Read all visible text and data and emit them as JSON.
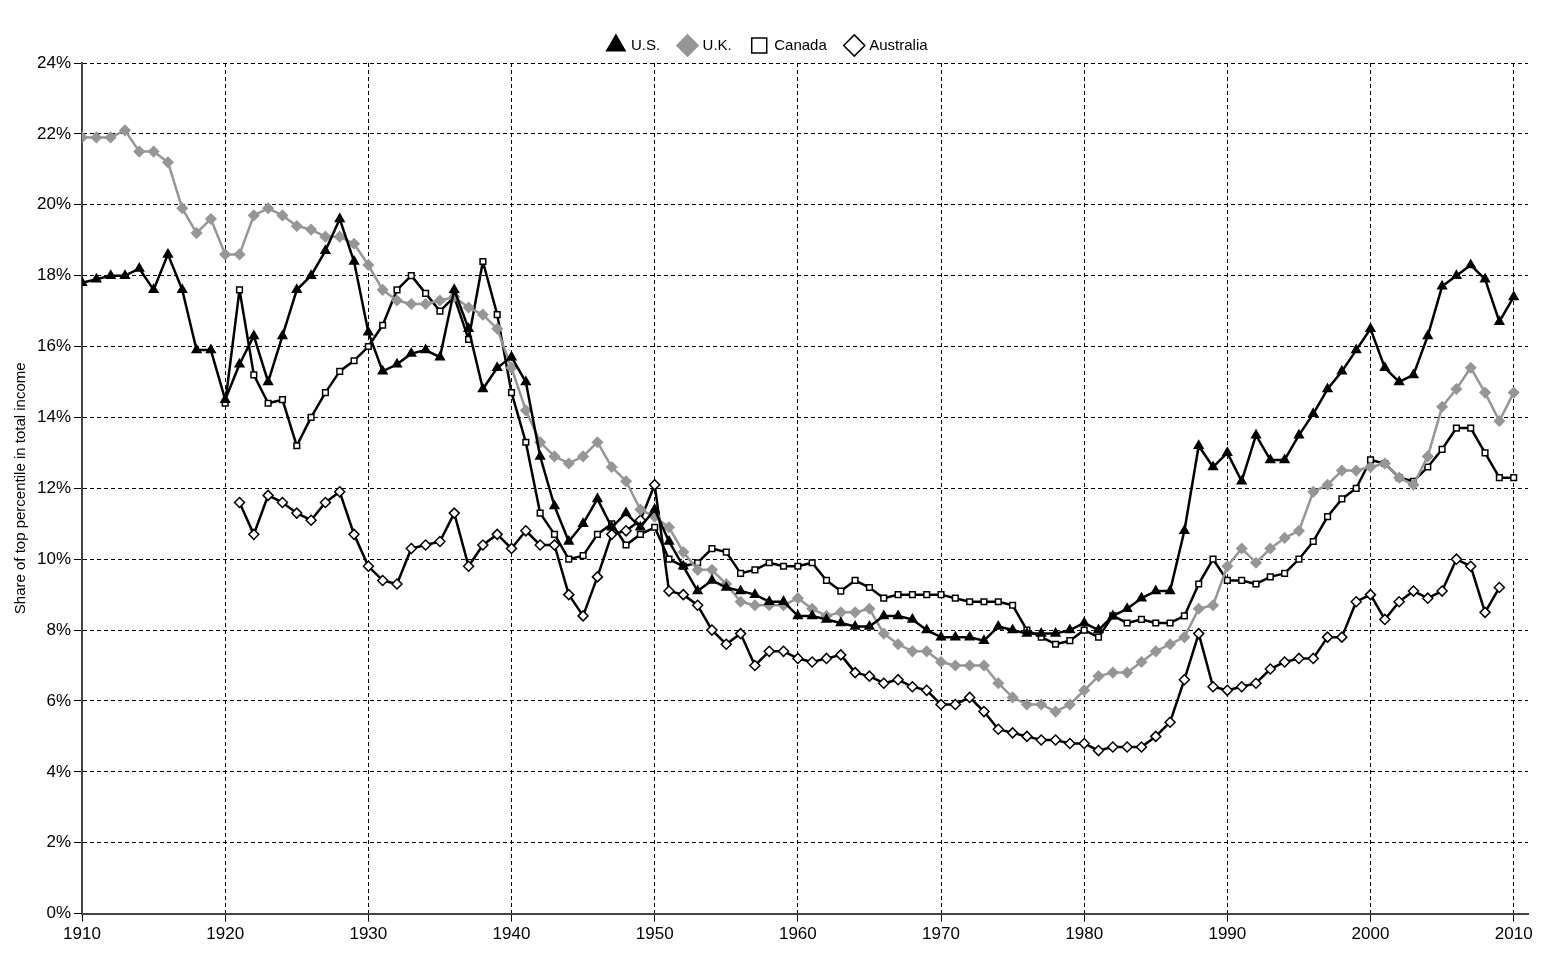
{
  "chart_data": {
    "type": "line",
    "ylabel": "Share of top percentile in total income",
    "x": [
      1910,
      1911,
      1912,
      1913,
      1914,
      1915,
      1916,
      1917,
      1918,
      1919,
      1920,
      1921,
      1922,
      1923,
      1924,
      1925,
      1926,
      1927,
      1928,
      1929,
      1930,
      1931,
      1932,
      1933,
      1934,
      1935,
      1936,
      1937,
      1938,
      1939,
      1940,
      1941,
      1942,
      1943,
      1944,
      1945,
      1946,
      1947,
      1948,
      1949,
      1950,
      1951,
      1952,
      1953,
      1954,
      1955,
      1956,
      1957,
      1958,
      1959,
      1960,
      1961,
      1962,
      1963,
      1964,
      1965,
      1966,
      1967,
      1968,
      1969,
      1970,
      1971,
      1972,
      1973,
      1974,
      1975,
      1976,
      1977,
      1978,
      1979,
      1980,
      1981,
      1982,
      1983,
      1984,
      1985,
      1986,
      1987,
      1988,
      1989,
      1990,
      1991,
      1992,
      1993,
      1994,
      1995,
      1996,
      1997,
      1998,
      1999,
      2000,
      2001,
      2002,
      2003,
      2004,
      2005,
      2006,
      2007,
      2008,
      2009,
      2010
    ],
    "series": [
      {
        "name": "U.S.",
        "color": "#000000",
        "marker": "triangle",
        "values": [
          17.8,
          17.9,
          18.0,
          18.0,
          18.2,
          17.6,
          18.6,
          17.6,
          15.9,
          15.9,
          14.5,
          15.5,
          16.3,
          15.0,
          16.3,
          17.6,
          18.0,
          18.7,
          19.6,
          18.4,
          16.4,
          15.3,
          15.5,
          15.8,
          15.9,
          15.7,
          17.6,
          16.5,
          14.8,
          15.4,
          15.7,
          15.0,
          12.9,
          11.5,
          10.5,
          11.0,
          11.7,
          10.9,
          11.3,
          10.9,
          11.4,
          10.5,
          9.8,
          9.1,
          9.4,
          9.2,
          9.1,
          9.0,
          8.8,
          8.8,
          8.4,
          8.4,
          8.3,
          8.2,
          8.1,
          8.1,
          8.4,
          8.4,
          8.3,
          8.0,
          7.8,
          7.8,
          7.8,
          7.7,
          8.1,
          8.0,
          7.9,
          7.9,
          7.9,
          8.0,
          8.2,
          8.0,
          8.4,
          8.6,
          8.9,
          9.1,
          9.1,
          10.8,
          13.2,
          12.6,
          13.0,
          12.2,
          13.5,
          12.8,
          12.8,
          13.5,
          14.1,
          14.8,
          15.3,
          15.9,
          16.5,
          15.4,
          15.0,
          15.2,
          16.3,
          17.7,
          18.0,
          18.3,
          17.9,
          16.7,
          17.4
        ]
      },
      {
        "name": "U.K.",
        "color": "#969696",
        "marker": "diamond",
        "values": [
          21.9,
          21.9,
          21.9,
          22.1,
          21.5,
          21.5,
          21.2,
          19.9,
          19.2,
          19.6,
          18.6,
          18.6,
          19.7,
          19.9,
          19.7,
          19.4,
          19.3,
          19.1,
          19.1,
          18.9,
          18.3,
          17.6,
          17.3,
          17.2,
          17.2,
          17.3,
          17.4,
          17.1,
          16.9,
          16.5,
          15.4,
          14.2,
          13.3,
          12.9,
          12.7,
          12.9,
          13.3,
          12.6,
          12.2,
          11.4,
          11.2,
          10.9,
          10.2,
          9.7,
          9.7,
          9.3,
          8.8,
          8.7,
          8.7,
          8.7,
          8.9,
          8.6,
          8.4,
          8.5,
          8.5,
          8.6,
          7.9,
          7.6,
          7.4,
          7.4,
          7.1,
          7.0,
          7.0,
          7.0,
          6.5,
          6.1,
          5.9,
          5.9,
          5.7,
          5.9,
          6.3,
          6.7,
          6.8,
          6.8,
          7.1,
          7.4,
          7.6,
          7.8,
          8.6,
          8.7,
          9.8,
          10.3,
          9.9,
          10.3,
          10.6,
          10.8,
          11.9,
          12.1,
          12.5,
          12.5,
          12.6,
          12.7,
          12.3,
          12.1,
          12.9,
          14.3,
          14.8,
          15.4,
          14.7,
          13.9,
          14.7
        ]
      },
      {
        "name": "Canada",
        "color": "#000000",
        "marker": "square",
        "values": [
          null,
          null,
          null,
          null,
          null,
          null,
          null,
          null,
          null,
          null,
          14.4,
          17.6,
          15.2,
          14.4,
          14.5,
          13.2,
          14.0,
          14.7,
          15.3,
          15.6,
          16.0,
          16.6,
          17.6,
          18.0,
          17.5,
          17.0,
          17.4,
          16.2,
          18.4,
          16.9,
          14.7,
          13.3,
          11.3,
          10.7,
          10.0,
          10.1,
          10.7,
          11.0,
          10.4,
          10.7,
          10.9,
          10.0,
          9.8,
          9.9,
          10.3,
          10.2,
          9.6,
          9.7,
          9.9,
          9.8,
          9.8,
          9.9,
          9.4,
          9.1,
          9.4,
          9.2,
          8.9,
          9.0,
          9.0,
          9.0,
          9.0,
          8.9,
          8.8,
          8.8,
          8.8,
          8.7,
          8.0,
          7.8,
          7.6,
          7.7,
          8.0,
          7.8,
          8.4,
          8.2,
          8.3,
          8.2,
          8.2,
          8.4,
          9.3,
          10.0,
          9.4,
          9.4,
          9.3,
          9.5,
          9.6,
          10.0,
          10.5,
          11.2,
          11.7,
          12.0,
          12.8,
          12.7,
          12.3,
          12.2,
          12.6,
          13.1,
          13.7,
          13.7,
          13.0,
          12.3,
          12.3
        ]
      },
      {
        "name": "Australia",
        "color": "#000000",
        "marker": "diamond",
        "values": [
          null,
          null,
          null,
          null,
          null,
          null,
          null,
          null,
          null,
          null,
          null,
          11.6,
          10.7,
          11.8,
          11.6,
          11.3,
          11.1,
          11.6,
          11.9,
          10.7,
          9.8,
          9.4,
          9.3,
          10.3,
          10.4,
          10.5,
          11.3,
          9.8,
          10.4,
          10.7,
          10.3,
          10.8,
          10.4,
          10.4,
          9.0,
          8.4,
          9.5,
          10.7,
          10.8,
          11.1,
          12.1,
          9.1,
          9.0,
          8.7,
          8.0,
          7.6,
          7.9,
          7.0,
          7.4,
          7.4,
          7.2,
          7.1,
          7.2,
          7.3,
          6.8,
          6.7,
          6.5,
          6.6,
          6.4,
          6.3,
          5.9,
          5.9,
          6.1,
          5.7,
          5.2,
          5.1,
          5.0,
          4.9,
          4.9,
          4.8,
          4.8,
          4.6,
          4.7,
          4.7,
          4.7,
          5.0,
          5.4,
          6.6,
          7.9,
          6.4,
          6.3,
          6.4,
          6.5,
          6.9,
          7.1,
          7.2,
          7.2,
          7.8,
          7.8,
          8.8,
          9.0,
          8.3,
          8.8,
          9.1,
          8.9,
          9.1,
          10.0,
          9.8,
          8.5,
          9.2,
          null
        ]
      }
    ],
    "xlim": [
      1910,
      2011
    ],
    "xticks": [
      1910,
      1920,
      1930,
      1940,
      1950,
      1960,
      1970,
      1980,
      1990,
      2000,
      2010
    ],
    "ylim": [
      0,
      24
    ],
    "yticks": [
      {
        "value": 0,
        "label": "0%"
      },
      {
        "value": 2,
        "label": "2%"
      },
      {
        "value": 4,
        "label": "4%"
      },
      {
        "value": 6,
        "label": "6%"
      },
      {
        "value": 8,
        "label": "8%"
      },
      {
        "value": 10,
        "label": "10%"
      },
      {
        "value": 12,
        "label": "12%"
      },
      {
        "value": 14,
        "label": "14%"
      },
      {
        "value": 16,
        "label": "16%"
      },
      {
        "value": 18,
        "label": "18%"
      },
      {
        "value": 20,
        "label": "20%"
      },
      {
        "value": 22,
        "label": "22%"
      },
      {
        "value": 24,
        "label": "24%"
      }
    ],
    "grid": true,
    "legend": "top",
    "line_style": "solid"
  }
}
